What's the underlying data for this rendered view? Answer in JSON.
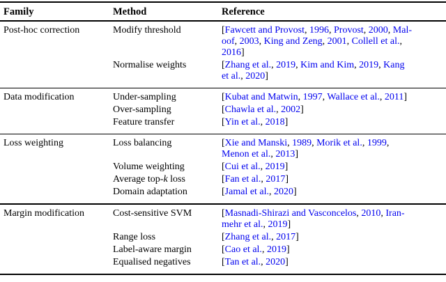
{
  "colors": {
    "link": "#0000EE",
    "text": "#000000",
    "rule": "#000000"
  },
  "header": {
    "family": "Family",
    "method": "Method",
    "reference": "Reference"
  },
  "sections": [
    {
      "family": "Post-hoc correction",
      "entries": [
        {
          "method": [
            {
              "t": "Modify threshold"
            }
          ],
          "ref": [
            {
              "t": "["
            },
            {
              "t": "Fawcett and Provost",
              "k": "l"
            },
            {
              "t": ", "
            },
            {
              "t": "1996",
              "k": "l"
            },
            {
              "t": ", "
            },
            {
              "t": "Provost",
              "k": "l"
            },
            {
              "t": ", "
            },
            {
              "t": "2000",
              "k": "l"
            },
            {
              "t": ", "
            },
            {
              "t": "Mal-",
              "k": "l"
            },
            {
              "br": true
            },
            {
              "t": "oof",
              "k": "l"
            },
            {
              "t": ", "
            },
            {
              "t": "2003",
              "k": "l"
            },
            {
              "t": ", "
            },
            {
              "t": "King and Zeng",
              "k": "l"
            },
            {
              "t": ", "
            },
            {
              "t": "2001",
              "k": "l"
            },
            {
              "t": ", "
            },
            {
              "t": "Collell et al.",
              "k": "l"
            },
            {
              "t": ","
            },
            {
              "br": true
            },
            {
              "t": "2016",
              "k": "l"
            },
            {
              "t": "]"
            }
          ]
        },
        {
          "method": [
            {
              "t": "Normalise weights"
            }
          ],
          "ref": [
            {
              "t": "["
            },
            {
              "t": "Zhang et al.",
              "k": "l"
            },
            {
              "t": ", "
            },
            {
              "t": "2019",
              "k": "l"
            },
            {
              "t": ", "
            },
            {
              "t": "Kim and Kim",
              "k": "l"
            },
            {
              "t": ", "
            },
            {
              "t": "2019",
              "k": "l"
            },
            {
              "t": ", "
            },
            {
              "t": "Kang",
              "k": "l"
            },
            {
              "br": true
            },
            {
              "t": "et al.",
              "k": "l"
            },
            {
              "t": ", "
            },
            {
              "t": "2020",
              "k": "l"
            },
            {
              "t": "]"
            }
          ]
        }
      ]
    },
    {
      "family": "Data modification",
      "entries": [
        {
          "method": [
            {
              "t": "Under-sampling"
            }
          ],
          "ref": [
            {
              "t": "["
            },
            {
              "t": "Kubat and Matwin",
              "k": "l"
            },
            {
              "t": ", "
            },
            {
              "t": "1997",
              "k": "l"
            },
            {
              "t": ", "
            },
            {
              "t": "Wallace et al.",
              "k": "l"
            },
            {
              "t": ", "
            },
            {
              "t": "2011",
              "k": "l"
            },
            {
              "t": "]"
            }
          ]
        },
        {
          "method": [
            {
              "t": "Over-sampling"
            }
          ],
          "ref": [
            {
              "t": "["
            },
            {
              "t": "Chawla et al.",
              "k": "l"
            },
            {
              "t": ", "
            },
            {
              "t": "2002",
              "k": "l"
            },
            {
              "t": "]"
            }
          ]
        },
        {
          "method": [
            {
              "t": "Feature transfer"
            }
          ],
          "ref": [
            {
              "t": "["
            },
            {
              "t": "Yin et al.",
              "k": "l"
            },
            {
              "t": ", "
            },
            {
              "t": "2018",
              "k": "l"
            },
            {
              "t": "]"
            }
          ]
        }
      ]
    },
    {
      "family": "Loss weighting",
      "entries": [
        {
          "method": [
            {
              "t": "Loss balancing"
            }
          ],
          "ref": [
            {
              "t": "["
            },
            {
              "t": "Xie and Manski",
              "k": "l"
            },
            {
              "t": ", "
            },
            {
              "t": "1989",
              "k": "l"
            },
            {
              "t": ", "
            },
            {
              "t": "Morik et al.",
              "k": "l"
            },
            {
              "t": ", "
            },
            {
              "t": "1999",
              "k": "l"
            },
            {
              "t": ","
            },
            {
              "br": true
            },
            {
              "t": "Menon et al.",
              "k": "l"
            },
            {
              "t": ", "
            },
            {
              "t": "2013",
              "k": "l"
            },
            {
              "t": "]"
            }
          ]
        },
        {
          "method": [
            {
              "t": "Volume weighting"
            }
          ],
          "ref": [
            {
              "t": "["
            },
            {
              "t": "Cui et al.",
              "k": "l"
            },
            {
              "t": ", "
            },
            {
              "t": "2019",
              "k": "l"
            },
            {
              "t": "]"
            }
          ]
        },
        {
          "method": [
            {
              "t": "Average top-"
            },
            {
              "t": "k",
              "k": "i"
            },
            {
              "t": " loss"
            }
          ],
          "ref": [
            {
              "t": "["
            },
            {
              "t": "Fan et al.",
              "k": "l"
            },
            {
              "t": ", "
            },
            {
              "t": "2017",
              "k": "l"
            },
            {
              "t": "]"
            }
          ]
        },
        {
          "method": [
            {
              "t": "Domain adaptation"
            }
          ],
          "ref": [
            {
              "t": "["
            },
            {
              "t": "Jamal et al.",
              "k": "l"
            },
            {
              "t": ", "
            },
            {
              "t": "2020",
              "k": "l"
            },
            {
              "t": "]"
            }
          ]
        }
      ]
    },
    {
      "family": "Margin modification",
      "entries": [
        {
          "method": [
            {
              "t": "Cost-sensitive SVM"
            }
          ],
          "ref": [
            {
              "t": "["
            },
            {
              "t": "Masnadi-Shirazi and Vasconcelos",
              "k": "l"
            },
            {
              "t": ", "
            },
            {
              "t": "2010",
              "k": "l"
            },
            {
              "t": ", "
            },
            {
              "t": "Iran-",
              "k": "l"
            },
            {
              "br": true
            },
            {
              "t": "mehr et al.",
              "k": "l"
            },
            {
              "t": ", "
            },
            {
              "t": "2019",
              "k": "l"
            },
            {
              "t": "]"
            }
          ]
        },
        {
          "method": [
            {
              "t": "Range loss"
            }
          ],
          "ref": [
            {
              "t": "["
            },
            {
              "t": "Zhang et al.",
              "k": "l"
            },
            {
              "t": ", "
            },
            {
              "t": "2017",
              "k": "l"
            },
            {
              "t": "]"
            }
          ]
        },
        {
          "method": [
            {
              "t": "Label-aware margin"
            }
          ],
          "ref": [
            {
              "t": "["
            },
            {
              "t": "Cao et al.",
              "k": "l"
            },
            {
              "t": ", "
            },
            {
              "t": "2019",
              "k": "l"
            },
            {
              "t": "]"
            }
          ]
        },
        {
          "method": [
            {
              "t": "Equalised negatives"
            }
          ],
          "ref": [
            {
              "t": "["
            },
            {
              "t": "Tan et al.",
              "k": "l"
            },
            {
              "t": ", "
            },
            {
              "t": "2020",
              "k": "l"
            },
            {
              "t": "]"
            }
          ]
        }
      ]
    }
  ]
}
